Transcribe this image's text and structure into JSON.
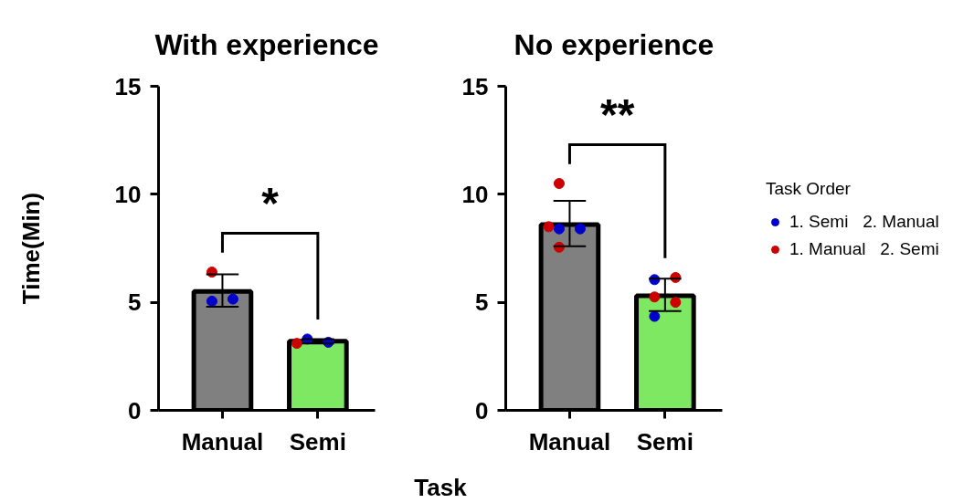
{
  "chart_data": [
    {
      "type": "bar",
      "title": "With experience",
      "ylabel": "Time(Min)",
      "xlabel": "Task",
      "categories": [
        "Manual",
        "Semi"
      ],
      "ylim": [
        0,
        15
      ],
      "yticks": [
        0,
        5,
        10,
        15
      ],
      "annotations": [
        "*"
      ],
      "series": [
        {
          "colors": [
            "#808080",
            "#7fe862"
          ],
          "values": [
            5.5,
            3.2
          ],
          "errors": [
            [
              4.8,
              6.3
            ],
            [
              3.1,
              3.3
            ]
          ]
        },
        {
          "type": "scatter",
          "marker": "circle",
          "color": "#0000cc",
          "x": [
            "Manual",
            "Manual",
            "Semi",
            "Semi"
          ],
          "values": [
            5.05,
            5.15,
            3.3,
            3.15
          ]
        },
        {
          "type": "scatter",
          "marker": "circle",
          "color": "#cc0000",
          "x": [
            "Manual",
            "Semi"
          ],
          "values": [
            6.4,
            3.1
          ]
        }
      ]
    },
    {
      "type": "bar",
      "title": "No experience",
      "categories": [
        "Manual",
        "Semi"
      ],
      "ylim": [
        0,
        15
      ],
      "yticks": [
        0,
        5,
        10,
        15
      ],
      "annotations": [
        "**"
      ],
      "legend": "right",
      "legend_title": "Task Order",
      "series": [
        {
          "colors": [
            "#808080",
            "#7fe862"
          ],
          "values": [
            8.6,
            5.3
          ],
          "errors": [
            [
              7.6,
              9.7
            ],
            [
              4.6,
              6.1
            ]
          ]
        },
        {
          "type": "scatter",
          "marker": "circle",
          "name": "1. Semi   2. Manual",
          "color": "#0000cc",
          "x": [
            "Manual",
            "Manual",
            "Semi",
            "Semi"
          ],
          "values": [
            8.4,
            8.4,
            6.05,
            4.35
          ]
        },
        {
          "type": "scatter",
          "marker": "circle",
          "name": "1. Manual   2. Semi",
          "color": "#cc0000",
          "x": [
            "Manual",
            "Manual",
            "Manual",
            "Semi",
            "Semi",
            "Semi"
          ],
          "values": [
            10.5,
            8.5,
            7.55,
            6.15,
            5.25,
            5.0
          ]
        }
      ]
    }
  ]
}
